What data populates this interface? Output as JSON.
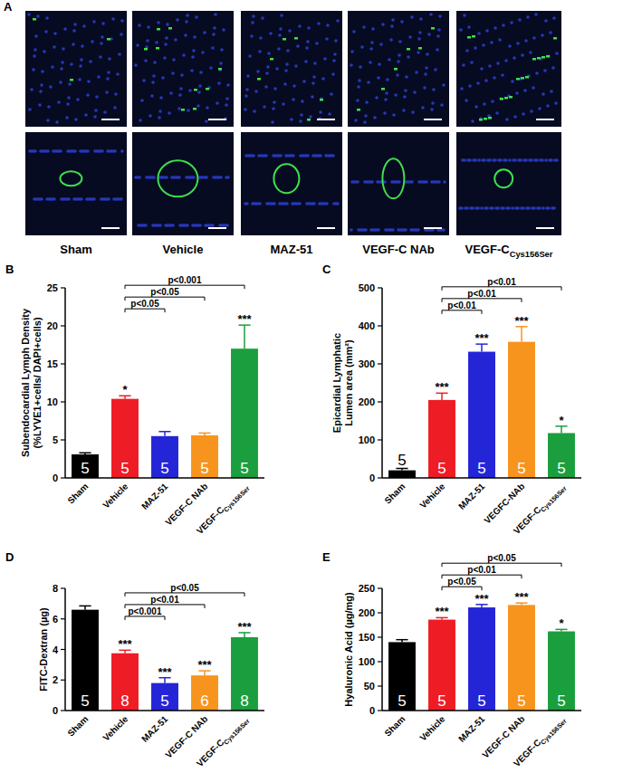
{
  "panel_a": {
    "label": "A",
    "captions": [
      "Sham",
      "Vehicle",
      "MAZ-51",
      "VEGF-C NAb",
      "VEGF-CCys156Ser"
    ]
  },
  "chart_data": [
    {
      "type": "bar",
      "title": "B",
      "categories": [
        "Sham",
        "Vehicle",
        "MAZ-51",
        "VEGF-C NAb",
        "VEGF-CCys156Ser"
      ],
      "values": [
        3.1,
        10.4,
        5.5,
        5.6,
        17.0
      ],
      "errors": [
        0.2,
        0.4,
        0.6,
        0.3,
        3.1
      ],
      "n": [
        5,
        5,
        5,
        5,
        5
      ],
      "significance": [
        null,
        "*",
        null,
        null,
        "***"
      ],
      "comparisons": [
        {
          "between": [
            "Vehicle",
            "MAZ-51"
          ],
          "label": "p<0.05"
        },
        {
          "between": [
            "Vehicle",
            "VEGF-C NAb"
          ],
          "label": "p<0.05"
        },
        {
          "between": [
            "Vehicle",
            "VEGF-CCys156Ser"
          ],
          "label": "p<0.001"
        }
      ],
      "colors": [
        "#000000",
        "#ee1c25",
        "#2525d8",
        "#f7941d",
        "#1b9e3e"
      ],
      "ylim": [
        0,
        25
      ],
      "yticks": [
        0,
        5,
        10,
        15,
        20,
        25
      ],
      "y_label": [
        "Subendocardial Lymph Density",
        "(%LYVE1+cells/ DAPI+cells)"
      ]
    },
    {
      "type": "bar",
      "title": "C",
      "categories": [
        "Sham",
        "Vehicle",
        "MAZ-51",
        "VEGFC-NAb",
        "VEGF-CCys156Ser"
      ],
      "values": [
        20,
        205,
        332,
        358,
        118
      ],
      "errors": [
        5,
        18,
        20,
        40,
        18
      ],
      "n": [
        5,
        5,
        5,
        5,
        5
      ],
      "significance": [
        null,
        "***",
        "***",
        "***",
        "*"
      ],
      "comparisons": [
        {
          "between": [
            "Vehicle",
            "MAZ-51"
          ],
          "label": "p<0.01"
        },
        {
          "between": [
            "Vehicle",
            "VEGFC-NAb"
          ],
          "label": "p<0.01"
        },
        {
          "between": [
            "Vehicle",
            "VEGF-CCys156Ser"
          ],
          "label": "p<0.01"
        }
      ],
      "colors": [
        "#000000",
        "#ee1c25",
        "#2525d8",
        "#f7941d",
        "#1b9e3e"
      ],
      "ylim": [
        0,
        500
      ],
      "yticks": [
        0,
        100,
        200,
        300,
        400,
        500
      ],
      "y_label": [
        "Epicardial Lymphatic",
        "Lumen area (mm²)"
      ]
    },
    {
      "type": "bar",
      "title": "D",
      "categories": [
        "Sham",
        "Vehicle",
        "MAZ-51",
        "VEGF-C NAb",
        "VEGF-CCys156Ser"
      ],
      "values": [
        6.6,
        3.75,
        1.8,
        2.3,
        4.8
      ],
      "errors": [
        0.25,
        0.2,
        0.35,
        0.3,
        0.3
      ],
      "n": [
        5,
        8,
        5,
        6,
        8
      ],
      "significance": [
        null,
        "***",
        "***",
        "***",
        "***"
      ],
      "comparisons": [
        {
          "between": [
            "Vehicle",
            "MAZ-51"
          ],
          "label": "p<0.001"
        },
        {
          "between": [
            "Vehicle",
            "VEGF-C NAb"
          ],
          "label": "p<0.01"
        },
        {
          "between": [
            "Vehicle",
            "VEGF-CCys156Ser"
          ],
          "label": "p<0.05"
        }
      ],
      "colors": [
        "#000000",
        "#ee1c25",
        "#2525d8",
        "#f7941d",
        "#1b9e3e"
      ],
      "ylim": [
        0,
        8
      ],
      "yticks": [
        0,
        2,
        4,
        6,
        8
      ],
      "y_label": [
        "FITC-Dextran (µg)"
      ]
    },
    {
      "type": "bar",
      "title": "E",
      "categories": [
        "Sham",
        "Vehicle",
        "MAZ-51",
        "VEGF-C NAb",
        "VEGF-CCys156Ser"
      ],
      "values": [
        140,
        186,
        211,
        216,
        162
      ],
      "errors": [
        5,
        4,
        6,
        4,
        4
      ],
      "n": [
        5,
        5,
        5,
        5,
        5
      ],
      "significance": [
        null,
        "***",
        "***",
        "***",
        "*"
      ],
      "comparisons": [
        {
          "between": [
            "Vehicle",
            "MAZ-51"
          ],
          "label": "p<0.05"
        },
        {
          "between": [
            "Vehicle",
            "VEGF-C NAb"
          ],
          "label": "p<0.01"
        },
        {
          "between": [
            "Vehicle",
            "VEGF-CCys156Ser"
          ],
          "label": "p<0.05"
        }
      ],
      "colors": [
        "#000000",
        "#ee1c25",
        "#2525d8",
        "#f7941d",
        "#1b9e3e"
      ],
      "ylim": [
        0,
        250
      ],
      "yticks": [
        0,
        50,
        100,
        150,
        200,
        250
      ],
      "y_label": [
        "Hyaluronic Acid (µg/mg)"
      ]
    }
  ]
}
